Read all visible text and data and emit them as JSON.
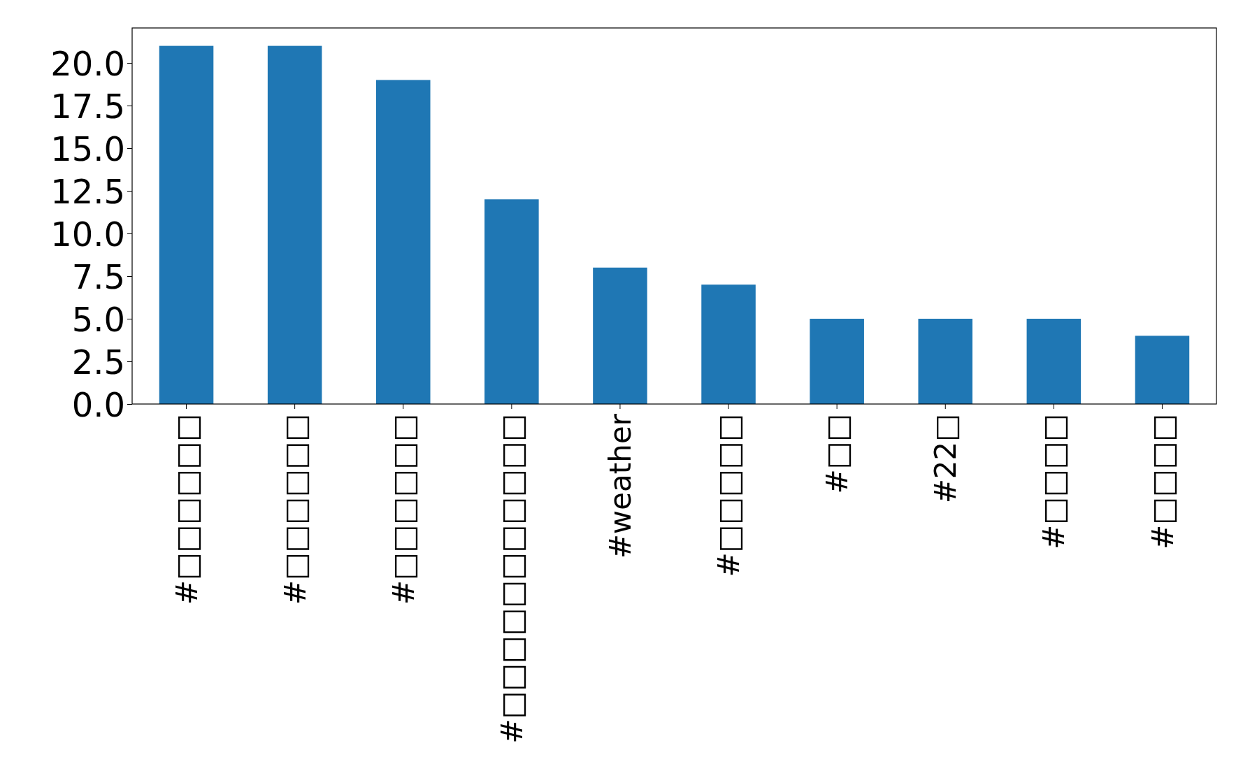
{
  "chart_data": {
    "type": "bar",
    "categories": [
      "#□□□□□□",
      "#□□□□□□",
      "#□□□□□□",
      "#□□□□□□□□□□□",
      "#weather",
      "#□□□□□",
      "#□□",
      "#22□",
      "#□□□□",
      "#□□□□"
    ],
    "values": [
      21,
      21,
      19,
      12,
      8,
      7,
      5,
      5,
      5,
      4
    ],
    "color": "#1f77b4",
    "ylim": [
      0,
      22.05
    ],
    "yticks": [
      {
        "value": 0,
        "label": "0.0"
      },
      {
        "value": 2.5,
        "label": "2.5"
      },
      {
        "value": 5,
        "label": "5.0"
      },
      {
        "value": 7.5,
        "label": "7.5"
      },
      {
        "value": 10,
        "label": "10.0"
      },
      {
        "value": 12.5,
        "label": "12.5"
      },
      {
        "value": 15,
        "label": "15.0"
      },
      {
        "value": 17.5,
        "label": "17.5"
      },
      {
        "value": 20,
        "label": "20.0"
      }
    ]
  }
}
